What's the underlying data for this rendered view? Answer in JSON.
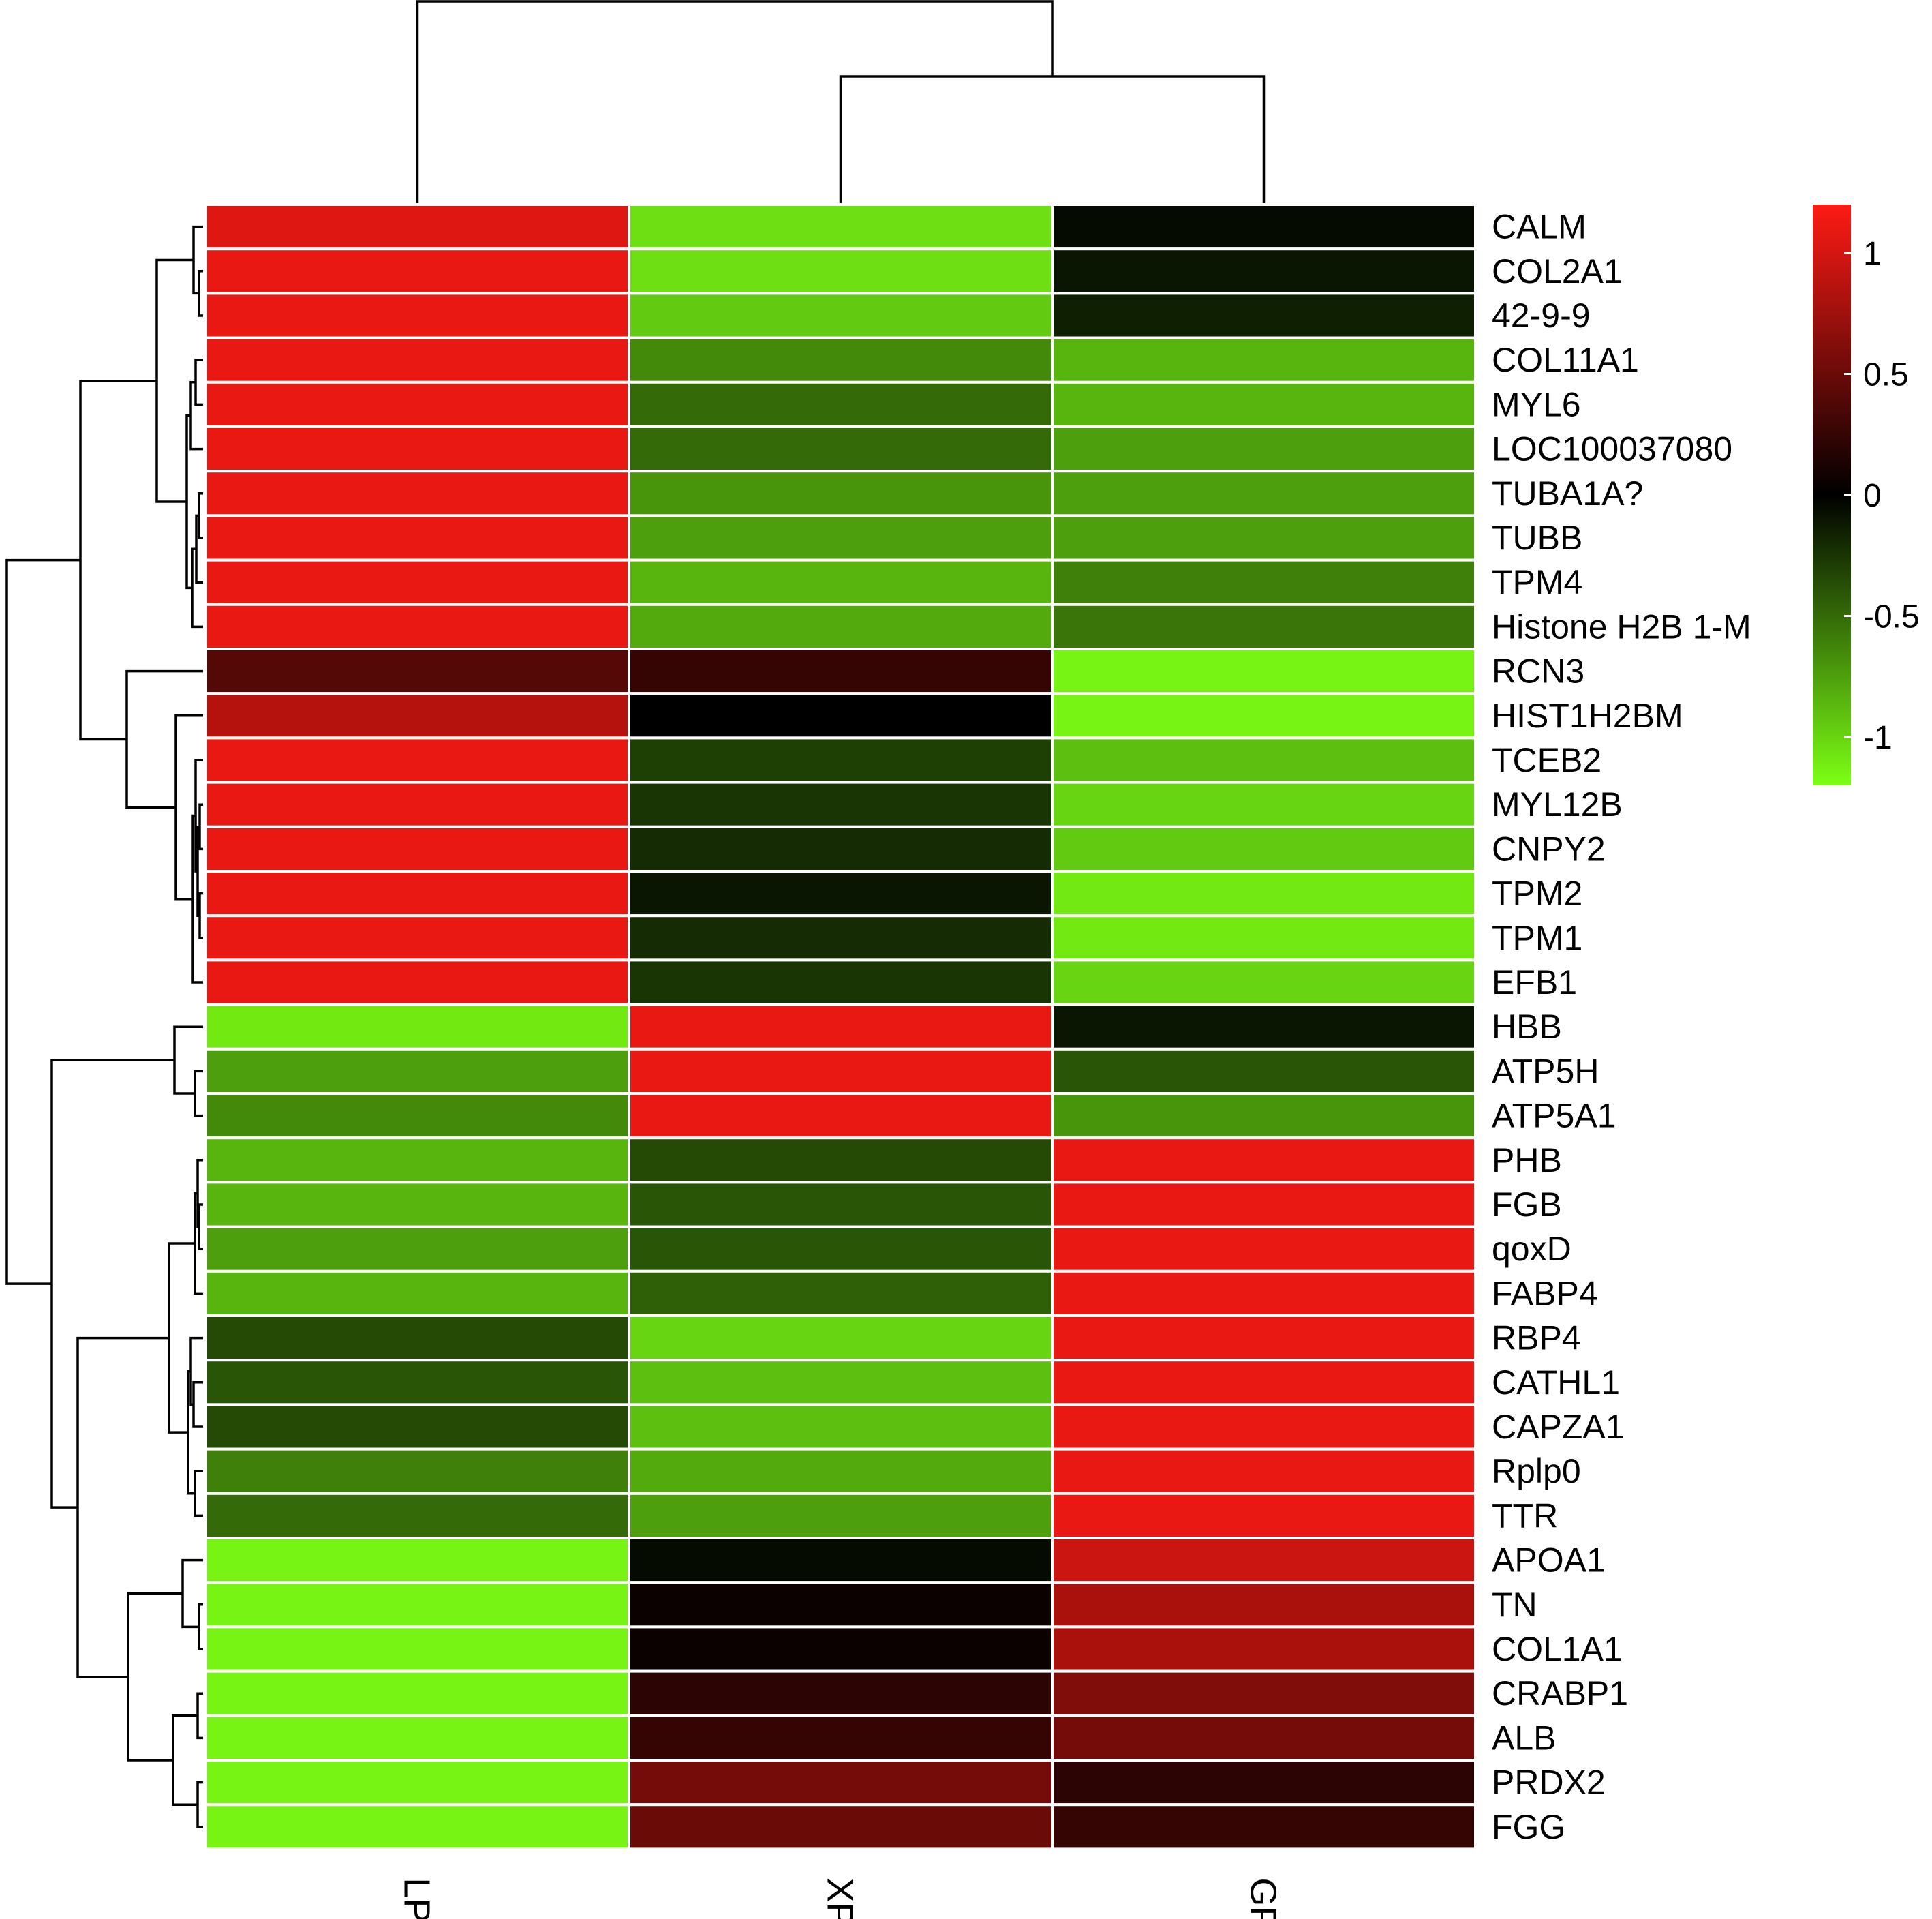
{
  "chart_data": {
    "type": "heatmap",
    "columns": [
      "LP",
      "XP",
      "GP"
    ],
    "rows": [
      "CALM",
      "COL2A1",
      "42-9-9",
      "COL11A1",
      "MYL6",
      "LOC100037080",
      "TUBA1A?",
      "TUBB",
      "TPM4",
      "Histone H2B 1-M",
      "RCN3",
      "HIST1H2BM",
      "TCEB2",
      "MYL12B",
      "CNPY2",
      "TPM2",
      "TPM1",
      "EFB1",
      "HBB",
      "ATP5H",
      "ATP5A1",
      "PHB",
      "FGB",
      "qoxD",
      "FABP4",
      "RBP4",
      "CATHL1",
      "CAPZA1",
      "Rplp0",
      "TTR",
      "APOA1",
      "TN",
      "COL1A1",
      "CRABP1",
      "ALB",
      "PRDX2",
      "FGG"
    ],
    "values": [
      [
        1.05,
        -1.05,
        -0.05
      ],
      [
        1.1,
        -1.05,
        -0.1
      ],
      [
        1.1,
        -0.95,
        -0.15
      ],
      [
        1.1,
        -0.65,
        -0.85
      ],
      [
        1.1,
        -0.5,
        -0.85
      ],
      [
        1.1,
        -0.5,
        -0.75
      ],
      [
        1.1,
        -0.7,
        -0.75
      ],
      [
        1.1,
        -0.75,
        -0.75
      ],
      [
        1.1,
        -0.85,
        -0.6
      ],
      [
        1.1,
        -0.8,
        -0.55
      ],
      [
        0.4,
        0.25,
        -1.15
      ],
      [
        0.85,
        0.0,
        -1.15
      ],
      [
        1.1,
        -0.3,
        -0.9
      ],
      [
        1.1,
        -0.25,
        -1.0
      ],
      [
        1.1,
        -0.2,
        -0.95
      ],
      [
        1.1,
        -0.1,
        -1.1
      ],
      [
        1.1,
        -0.2,
        -1.1
      ],
      [
        1.1,
        -0.25,
        -1.0
      ],
      [
        -1.1,
        1.1,
        -0.1
      ],
      [
        -0.75,
        1.1,
        -0.4
      ],
      [
        -0.65,
        1.1,
        -0.7
      ],
      [
        -0.85,
        -0.35,
        1.1
      ],
      [
        -0.85,
        -0.4,
        1.1
      ],
      [
        -0.75,
        -0.4,
        1.1
      ],
      [
        -0.85,
        -0.45,
        1.1
      ],
      [
        -0.35,
        -1.0,
        1.1
      ],
      [
        -0.4,
        -0.9,
        1.1
      ],
      [
        -0.35,
        -0.9,
        1.1
      ],
      [
        -0.6,
        -0.8,
        1.1
      ],
      [
        -0.5,
        -0.75,
        1.1
      ],
      [
        -1.15,
        -0.05,
        0.95
      ],
      [
        -1.15,
        0.05,
        0.8
      ],
      [
        -1.15,
        0.05,
        0.8
      ],
      [
        -1.15,
        0.2,
        0.6
      ],
      [
        -1.15,
        0.25,
        0.55
      ],
      [
        -1.15,
        0.55,
        0.2
      ],
      [
        -1.15,
        0.5,
        0.25
      ]
    ],
    "colorbar": {
      "ticks": [
        1,
        0.5,
        0,
        -0.5,
        -1
      ],
      "tick_labels": [
        "1",
        "0.5",
        "0",
        "-0.5",
        "-1"
      ],
      "range": [
        -1.2,
        1.2
      ],
      "colors": [
        "#7cff14",
        "#000000",
        "#ff1a14"
      ],
      "placement": "right"
    },
    "grid": true
  }
}
